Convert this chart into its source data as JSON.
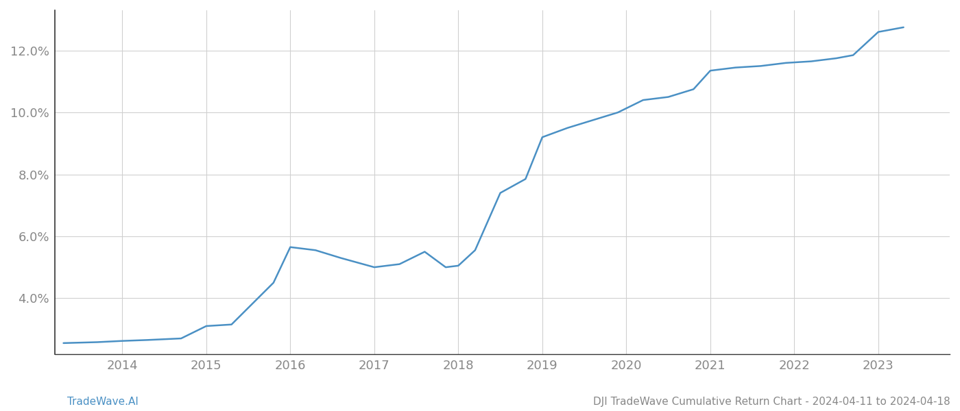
{
  "x_years": [
    2013.3,
    2013.7,
    2014.0,
    2014.3,
    2014.7,
    2015.0,
    2015.3,
    2015.8,
    2016.0,
    2016.3,
    2016.6,
    2017.0,
    2017.3,
    2017.6,
    2017.85,
    2018.0,
    2018.2,
    2018.5,
    2018.8,
    2019.0,
    2019.3,
    2019.6,
    2019.9,
    2020.2,
    2020.5,
    2020.8,
    2021.0,
    2021.3,
    2021.6,
    2021.9,
    2022.2,
    2022.5,
    2022.7,
    2023.0,
    2023.3
  ],
  "y_values": [
    2.55,
    2.58,
    2.62,
    2.65,
    2.7,
    3.1,
    3.15,
    4.5,
    5.65,
    5.55,
    5.3,
    5.0,
    5.1,
    5.5,
    5.0,
    5.05,
    5.55,
    7.4,
    7.85,
    9.2,
    9.5,
    9.75,
    10.0,
    10.4,
    10.5,
    10.75,
    11.35,
    11.45,
    11.5,
    11.6,
    11.65,
    11.75,
    11.85,
    12.6,
    12.75
  ],
  "line_color": "#4a90c4",
  "line_width": 1.8,
  "background_color": "#ffffff",
  "grid_color": "#d0d0d0",
  "tick_color": "#888888",
  "spine_color": "#333333",
  "title_text": "DJI TradeWave Cumulative Return Chart - 2024-04-11 to 2024-04-18",
  "watermark_text": "TradeWave.AI",
  "xlim": [
    2013.2,
    2023.85
  ],
  "ylim": [
    2.2,
    13.3
  ],
  "yticks": [
    4.0,
    6.0,
    8.0,
    10.0,
    12.0
  ],
  "xticks": [
    2014,
    2015,
    2016,
    2017,
    2018,
    2019,
    2020,
    2021,
    2022,
    2023
  ],
  "title_fontsize": 11,
  "watermark_fontsize": 11,
  "tick_fontsize": 13
}
